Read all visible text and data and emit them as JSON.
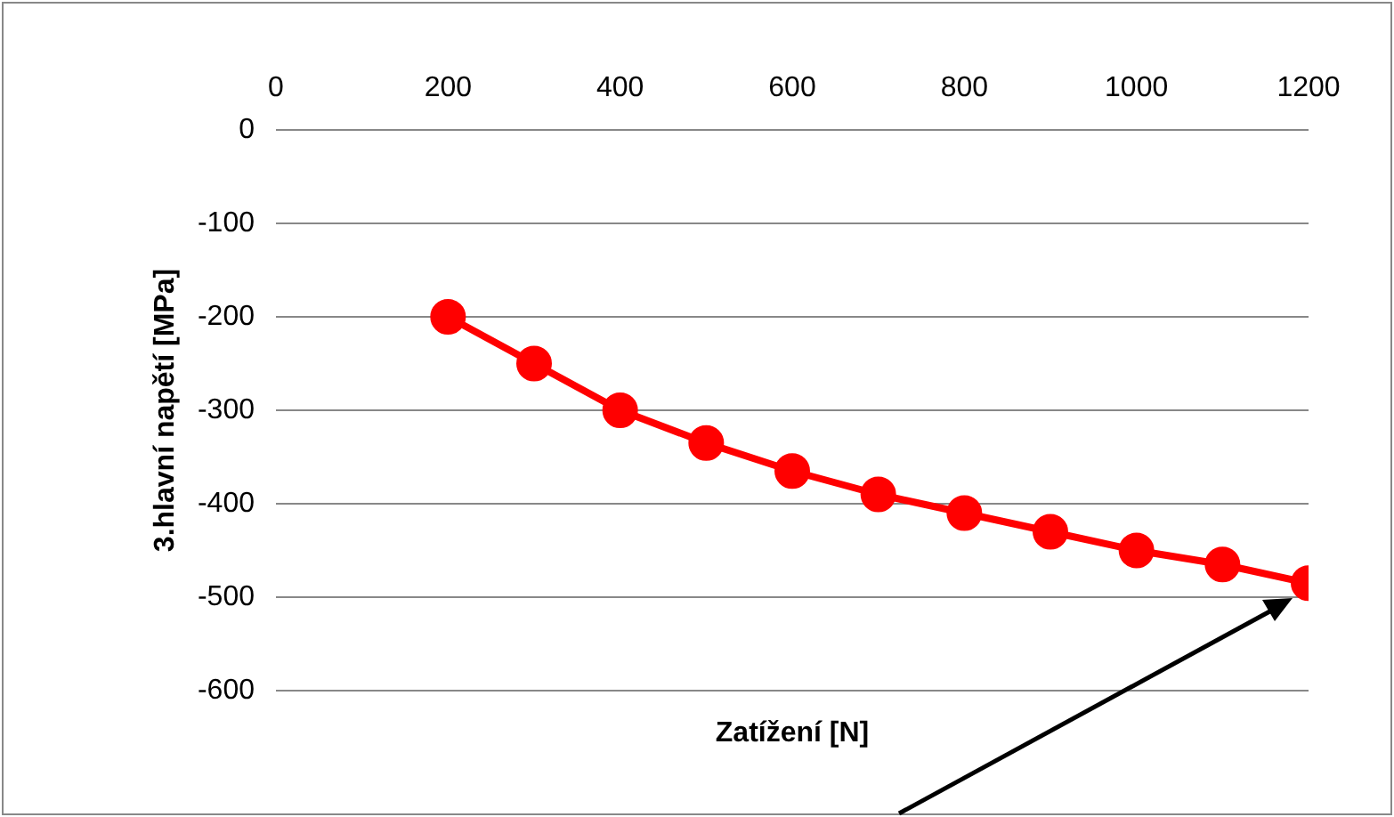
{
  "chart_data": {
    "type": "line",
    "xlabel": "Zatížení [N]",
    "ylabel": "3.hlavní napětí [MPa]",
    "x": [
      200,
      300,
      400,
      500,
      600,
      700,
      800,
      900,
      1000,
      1100,
      1200
    ],
    "series": [
      {
        "color": "#ff0000",
        "values": [
          -200,
          -250,
          -300,
          -335,
          -365,
          -390,
          -410,
          -430,
          -450,
          -465,
          -485
        ]
      }
    ],
    "xlim": [
      0,
      1200
    ],
    "xticks": [
      0,
      200,
      400,
      600,
      800,
      1000,
      1200
    ],
    "ylim": [
      -600,
      0
    ],
    "yticks": [
      0,
      -100,
      -200,
      -300,
      -400,
      -500,
      -600
    ],
    "grid": "y",
    "legend": false,
    "marker": "circle",
    "line_style": "solid"
  }
}
